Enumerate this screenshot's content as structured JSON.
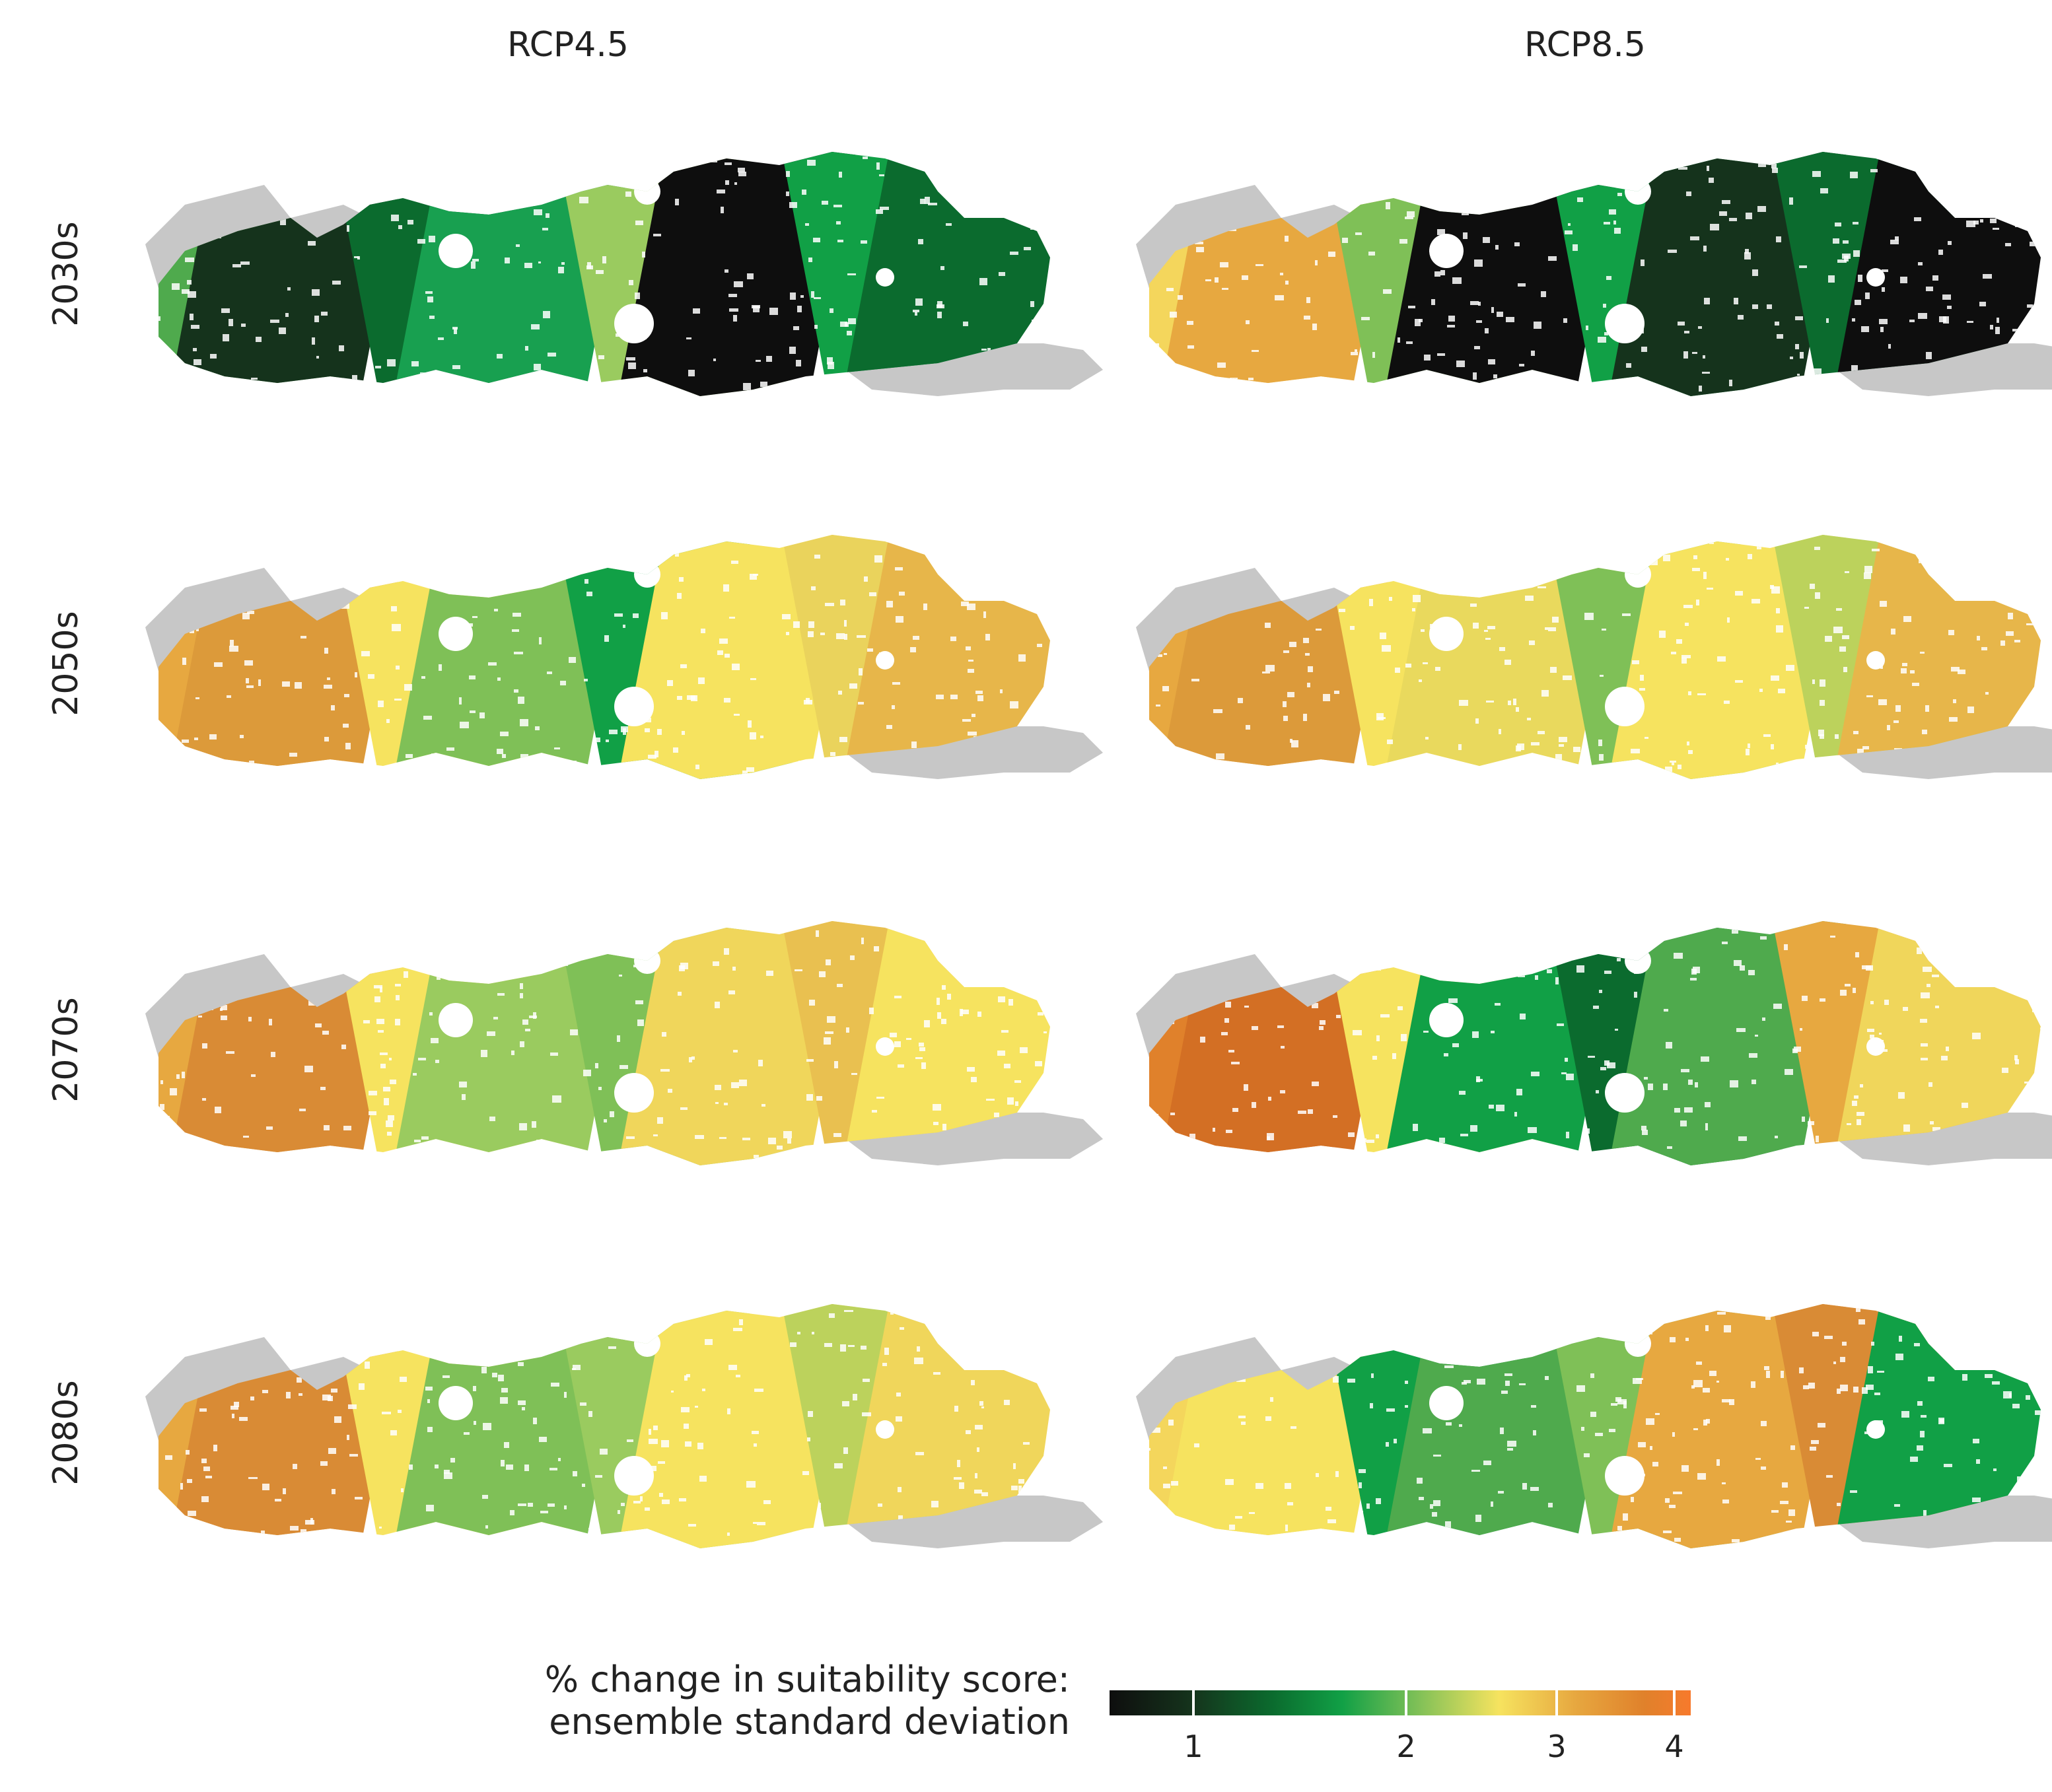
{
  "columns": [
    "RCP4.5",
    "RCP8.5"
  ],
  "rows": [
    "2030s",
    "2050s",
    "2070s",
    "2080s"
  ],
  "legend": {
    "title_line1": "% change in suitability score:",
    "title_line2": "ensemble standard deviation",
    "ticks": [
      "1",
      "2",
      "3",
      "4"
    ]
  },
  "colors": {
    "outside_region": "#c7c7c7",
    "urban_nodata": "#ffffff",
    "scale": [
      "#0e0e0e",
      "#15331c",
      "#0b6b2e",
      "#11a046",
      "#7fc057",
      "#f6e35f",
      "#e7a840",
      "#e0812b",
      "#f77a2c"
    ]
  },
  "panels": [
    {
      "row": "2030s",
      "col": "RCP4.5",
      "pattern": [
        "#4faa4d",
        "#15331c",
        "#0b6b2e",
        "#18a050",
        "#9acb5f",
        "#0e0e0e",
        "#11a046",
        "#0b6b2e"
      ]
    },
    {
      "row": "2030s",
      "col": "RCP8.5",
      "pattern": [
        "#f4d65c",
        "#e7a840",
        "#7fc057",
        "#0e0e0e",
        "#11a046",
        "#15331c",
        "#0b6b2e",
        "#0e0e0e"
      ]
    },
    {
      "row": "2050s",
      "col": "RCP4.5",
      "pattern": [
        "#e7a840",
        "#dc9a3a",
        "#f6e35f",
        "#7fc057",
        "#11a046",
        "#f6e35f",
        "#ead35c",
        "#e7b64a"
      ]
    },
    {
      "row": "2050s",
      "col": "RCP8.5",
      "pattern": [
        "#e7a840",
        "#dc9a3a",
        "#f6e35f",
        "#e9d95d",
        "#7fc057",
        "#f6e35f",
        "#bcd25c",
        "#e7b64a"
      ]
    },
    {
      "row": "2070s",
      "col": "RCP4.5",
      "pattern": [
        "#e7a840",
        "#d98b35",
        "#f6e35f",
        "#9acb5f",
        "#7fc057",
        "#f0d65b",
        "#e9c050",
        "#f6e35f"
      ]
    },
    {
      "row": "2070s",
      "col": "RCP8.5",
      "pattern": [
        "#e0812b",
        "#d36f24",
        "#f6e35f",
        "#11a046",
        "#0b6b2e",
        "#4faa4d",
        "#e7a840",
        "#f0d65b"
      ]
    },
    {
      "row": "2080s",
      "col": "RCP4.5",
      "pattern": [
        "#e7a840",
        "#d98b35",
        "#f6e35f",
        "#7fc057",
        "#9acb5f",
        "#f6e35f",
        "#bcd25c",
        "#f0d65b"
      ]
    },
    {
      "row": "2080s",
      "col": "RCP8.5",
      "pattern": [
        "#f4d65c",
        "#f6e35f",
        "#11a046",
        "#4faa4d",
        "#7fc057",
        "#e7a840",
        "#d98b35",
        "#11a046"
      ]
    }
  ]
}
